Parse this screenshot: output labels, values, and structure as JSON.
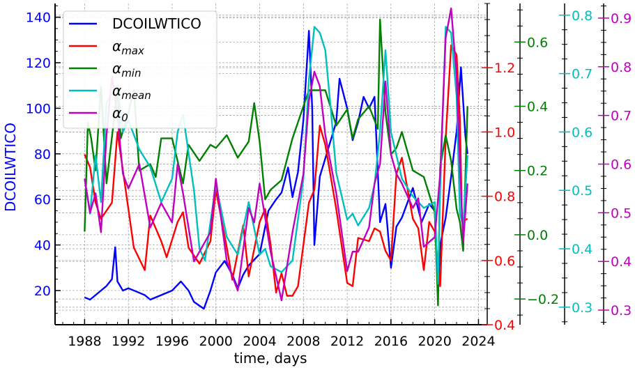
{
  "chart_data": {
    "type": "line",
    "xlabel": "time, days",
    "ylabel": "DCOILWTICO",
    "xlim": [
      1985.3,
      2024.8
    ],
    "xticks": [
      1988,
      1992,
      1996,
      2000,
      2004,
      2008,
      2012,
      2016,
      2020,
      2024
    ],
    "axes": [
      {
        "id": "left",
        "color": "#0000ff",
        "range": [
          5,
          146
        ],
        "ticks": [
          20,
          40,
          60,
          80,
          100,
          120,
          140
        ],
        "tick_labels": [
          "20",
          "40",
          "60",
          "80",
          "100",
          "120",
          "140"
        ]
      },
      {
        "id": "alpha_max",
        "color": "#ff0000",
        "range": [
          0.4,
          1.4
        ],
        "ticks": [
          0.4,
          0.6,
          0.8,
          1.0,
          1.2
        ],
        "tick_labels": [
          "0.4",
          "0.6",
          "0.8",
          "1.0",
          "1.2"
        ]
      },
      {
        "id": "alpha_min",
        "color": "#008000",
        "range": [
          -0.28,
          0.72
        ],
        "ticks": [
          -0.2,
          0.0,
          0.2,
          0.4,
          0.6
        ],
        "tick_labels": [
          "−0.2",
          "0.0",
          "0.2",
          "0.4",
          "0.6"
        ]
      },
      {
        "id": "alpha_mean",
        "color": "#00bfbf",
        "range": [
          0.27,
          0.82
        ],
        "ticks": [
          0.3,
          0.4,
          0.5,
          0.6,
          0.7,
          0.8
        ],
        "tick_labels": [
          "0.3",
          "0.4",
          "0.5",
          "0.6",
          "0.7",
          "0.8"
        ]
      },
      {
        "id": "alpha_0",
        "color": "#bf00bf",
        "range": [
          0.27,
          0.93
        ],
        "ticks": [
          0.3,
          0.4,
          0.5,
          0.6,
          0.7,
          0.8,
          0.9
        ],
        "tick_labels": [
          "0.3",
          "0.4",
          "0.5",
          "0.6",
          "0.7",
          "0.8",
          "0.9"
        ]
      }
    ],
    "legend": {
      "position": "top-left",
      "entries": [
        {
          "series": "DCOILWTICO",
          "label": "DCOILWTICO",
          "sub": ""
        },
        {
          "series": "alpha_max",
          "label": "α",
          "sub": "max"
        },
        {
          "series": "alpha_min",
          "label": "α",
          "sub": "min"
        },
        {
          "series": "alpha_mean",
          "label": "α",
          "sub": "mean"
        },
        {
          "series": "alpha_0",
          "label": "α",
          "sub": "0"
        }
      ]
    },
    "grid": true,
    "series": [
      {
        "name": "DCOILWTICO",
        "axis": "left",
        "color": "#0000ff",
        "x": [
          1988.0,
          1988.5,
          1989.0,
          1989.5,
          1990.0,
          1990.5,
          1990.8,
          1991.0,
          1991.5,
          1992.0,
          1993.0,
          1993.5,
          1994.0,
          1995.0,
          1996.0,
          1996.8,
          1997.5,
          1998.0,
          1998.9,
          1999.5,
          2000.0,
          2000.8,
          2001.5,
          2002.0,
          2002.5,
          2003.0,
          2004.0,
          2004.8,
          2005.5,
          2006.0,
          2006.6,
          2007.0,
          2007.5,
          2008.0,
          2008.5,
          2008.8,
          2009.0,
          2009.5,
          2010.0,
          2011.0,
          2011.3,
          2012.0,
          2012.5,
          2013.0,
          2013.5,
          2014.0,
          2014.5,
          2015.0,
          2015.5,
          2016.0,
          2016.5,
          2017.0,
          2018.0,
          2018.8,
          2019.5,
          2020.0,
          2020.3,
          2020.5,
          2021.0,
          2021.5,
          2022.0,
          2022.4,
          2022.8,
          2023.0
        ],
        "y": [
          17,
          16,
          18,
          20,
          22,
          25,
          39,
          24,
          20,
          21,
          19,
          18,
          16,
          18,
          20,
          24,
          20,
          15,
          12,
          20,
          28,
          33,
          27,
          21,
          27,
          31,
          36,
          55,
          60,
          63,
          74,
          61,
          72,
          95,
          134,
          100,
          40,
          70,
          78,
          94,
          113,
          100,
          86,
          94,
          105,
          100,
          105,
          50,
          58,
          30,
          48,
          52,
          65,
          50,
          58,
          55,
          18,
          40,
          52,
          70,
          90,
          118,
          88,
          80
        ]
      },
      {
        "name": "alpha_max",
        "axis": "alpha_max",
        "color": "#ff0000",
        "x": [
          1988.0,
          1988.5,
          1989.0,
          1989.5,
          1990.5,
          1991.0,
          1992.0,
          1992.5,
          1993.5,
          1994.0,
          1995.0,
          1995.5,
          1996.5,
          1997.0,
          1997.5,
          1998.5,
          1999.5,
          2000.0,
          2001.0,
          2001.5,
          2002.5,
          2003.0,
          2004.0,
          2004.5,
          2005.0,
          2005.5,
          2006.0,
          2006.5,
          2007.0,
          2007.5,
          2008.5,
          2009.0,
          2009.5,
          2010.0,
          2011.0,
          2012.0,
          2012.5,
          2013.0,
          2014.0,
          2014.5,
          2015.0,
          2015.5,
          2016.0,
          2016.5,
          2017.0,
          2018.0,
          2018.5,
          2019.0,
          2019.5,
          2020.0,
          2020.5,
          2021.0,
          2021.5,
          2022.0,
          2022.3,
          2022.5,
          2023.0
        ],
        "y": [
          0.93,
          0.89,
          0.78,
          0.73,
          0.78,
          1.0,
          0.76,
          0.64,
          0.57,
          0.74,
          0.66,
          0.61,
          0.72,
          0.75,
          0.64,
          0.59,
          0.66,
          0.82,
          0.64,
          0.54,
          0.71,
          0.55,
          0.72,
          0.76,
          0.65,
          0.5,
          0.56,
          0.49,
          0.49,
          0.52,
          0.78,
          0.82,
          1.02,
          0.96,
          0.76,
          0.53,
          0.52,
          0.67,
          0.66,
          0.7,
          0.69,
          0.63,
          0.6,
          0.87,
          0.92,
          0.73,
          0.7,
          0.57,
          0.72,
          0.69,
          0.52,
          0.98,
          1.27,
          1.24,
          1.04,
          0.72,
          0.73
        ]
      },
      {
        "name": "alpha_min",
        "axis": "alpha_min",
        "color": "#008000",
        "x": [
          1988.0,
          1988.3,
          1988.6,
          1989.0,
          1989.5,
          1990.0,
          1991.0,
          1991.3,
          1992.0,
          1992.5,
          1993.0,
          1994.0,
          1994.5,
          1995.0,
          1996.0,
          1997.0,
          1997.5,
          1998.5,
          1999.5,
          2000.0,
          2001.0,
          2002.0,
          2003.0,
          2003.5,
          2004.0,
          2004.5,
          2005.0,
          2006.0,
          2007.0,
          2008.0,
          2008.5,
          2009.0,
          2010.0,
          2011.0,
          2012.0,
          2012.5,
          2013.0,
          2014.0,
          2014.8,
          2015.0,
          2015.5,
          2016.0,
          2016.5,
          2017.0,
          2018.0,
          2019.0,
          2020.0,
          2020.3,
          2020.5,
          2021.0,
          2021.5,
          2022.0,
          2022.3,
          2022.6,
          2023.0
        ],
        "y": [
          0.01,
          0.35,
          0.3,
          0.2,
          0.46,
          0.16,
          0.45,
          0.3,
          0.38,
          0.45,
          0.2,
          0.22,
          0.18,
          0.3,
          0.3,
          0.16,
          0.28,
          0.23,
          0.28,
          0.27,
          0.31,
          0.24,
          0.29,
          0.41,
          0.29,
          0.11,
          0.14,
          0.17,
          0.3,
          0.4,
          0.45,
          0.45,
          0.45,
          0.34,
          0.39,
          0.3,
          0.36,
          0.4,
          0.33,
          0.67,
          0.38,
          0.25,
          0.27,
          0.32,
          0.2,
          0.18,
          0.07,
          -0.22,
          0.21,
          0.31,
          0.23,
          0.08,
          0.04,
          -0.05,
          0.4
        ]
      },
      {
        "name": "alpha_mean",
        "axis": "alpha_mean",
        "color": "#00bfbf",
        "x": [
          1988.0,
          1988.5,
          1989.0,
          1989.5,
          1990.0,
          1991.0,
          1991.5,
          1992.0,
          1993.0,
          1994.0,
          1995.0,
          1996.0,
          1996.5,
          1997.0,
          1998.0,
          1998.5,
          1999.0,
          2000.0,
          2001.0,
          2002.0,
          2003.0,
          2004.0,
          2004.5,
          2005.0,
          2006.0,
          2007.0,
          2008.0,
          2008.5,
          2009.0,
          2009.5,
          2010.0,
          2010.5,
          2011.0,
          2012.0,
          2012.5,
          2013.0,
          2014.0,
          2014.5,
          2015.0,
          2015.5,
          2016.0,
          2017.0,
          2018.0,
          2019.0,
          2020.0,
          2020.3,
          2020.5,
          2021.0,
          2021.5,
          2022.0,
          2022.3,
          2022.6,
          2023.0
        ],
        "y": [
          0.52,
          0.46,
          0.56,
          0.48,
          0.65,
          0.68,
          0.6,
          0.62,
          0.57,
          0.54,
          0.48,
          0.52,
          0.6,
          0.63,
          0.5,
          0.4,
          0.38,
          0.51,
          0.42,
          0.39,
          0.48,
          0.39,
          0.4,
          0.37,
          0.36,
          0.38,
          0.52,
          0.69,
          0.78,
          0.77,
          0.74,
          0.64,
          0.53,
          0.45,
          0.46,
          0.44,
          0.47,
          0.51,
          0.6,
          0.74,
          0.6,
          0.52,
          0.49,
          0.47,
          0.48,
          0.34,
          0.5,
          0.78,
          0.77,
          0.66,
          0.46,
          0.44,
          0.56
        ]
      },
      {
        "name": "alpha_0",
        "axis": "alpha_0",
        "color": "#bf00bf",
        "x": [
          1988.0,
          1988.5,
          1989.0,
          1989.5,
          1990.0,
          1990.5,
          1991.0,
          1991.5,
          1992.0,
          1993.0,
          1994.0,
          1995.0,
          1996.0,
          1996.5,
          1997.0,
          1998.0,
          1999.0,
          1999.5,
          2000.0,
          2001.0,
          2002.0,
          2003.0,
          2003.5,
          2004.0,
          2005.0,
          2006.0,
          2007.0,
          2008.0,
          2008.5,
          2009.0,
          2009.5,
          2010.0,
          2011.0,
          2012.0,
          2012.5,
          2013.0,
          2014.0,
          2014.5,
          2015.0,
          2015.5,
          2016.0,
          2016.5,
          2017.0,
          2018.0,
          2018.5,
          2019.0,
          2020.0,
          2020.5,
          2021.0,
          2021.5,
          2022.0,
          2022.3,
          2022.6,
          2023.0
        ],
        "y": [
          0.57,
          0.5,
          0.54,
          0.46,
          0.66,
          0.78,
          0.7,
          0.58,
          0.55,
          0.6,
          0.47,
          0.52,
          0.48,
          0.6,
          0.54,
          0.4,
          0.44,
          0.46,
          0.57,
          0.4,
          0.34,
          0.51,
          0.48,
          0.56,
          0.42,
          0.32,
          0.46,
          0.58,
          0.73,
          0.79,
          0.76,
          0.66,
          0.54,
          0.38,
          0.42,
          0.42,
          0.47,
          0.56,
          0.6,
          0.77,
          0.62,
          0.58,
          0.56,
          0.51,
          0.53,
          0.43,
          0.45,
          0.58,
          0.86,
          0.92,
          0.78,
          0.6,
          0.44,
          0.56
        ]
      }
    ]
  }
}
